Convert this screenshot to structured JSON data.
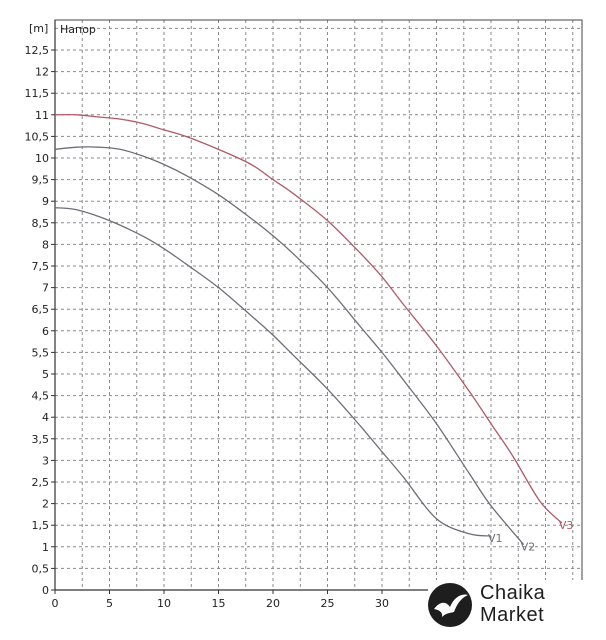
{
  "chart_data": {
    "type": "line",
    "title": "",
    "ylabel_unit": "[m]",
    "ylabel": "Напор",
    "xlabel": "",
    "xlim": [
      0,
      47
    ],
    "ylim": [
      0,
      13
    ],
    "xticks": [
      "0",
      "5",
      "10",
      "15",
      "20",
      "25",
      "30"
    ],
    "yticks": [
      "0",
      "0,5",
      "1",
      "1,5",
      "2",
      "2,5",
      "3",
      "3,5",
      "4",
      "4,5",
      "5",
      "5,5",
      "6",
      "6,5",
      "7",
      "7,5",
      "8",
      "8,5",
      "9",
      "9,5",
      "10",
      "10,5",
      "11",
      "11,5",
      "12",
      "12,5"
    ],
    "grid": true,
    "series": [
      {
        "name": "V1",
        "color": "#6e6e78",
        "x": [
          0,
          2,
          5,
          8,
          10,
          12,
          15,
          18,
          20,
          22,
          25,
          28,
          30,
          32,
          35,
          38,
          40
        ],
        "y": [
          8.85,
          8.8,
          8.55,
          8.2,
          7.9,
          7.55,
          7.0,
          6.35,
          5.9,
          5.4,
          4.65,
          3.8,
          3.2,
          2.6,
          1.65,
          1.3,
          1.25
        ]
      },
      {
        "name": "V2",
        "color": "#6e6e78",
        "x": [
          0,
          2,
          4,
          6,
          8,
          10,
          12,
          15,
          18,
          20,
          22,
          25,
          28,
          30,
          32,
          35,
          38,
          40,
          43
        ],
        "y": [
          10.2,
          10.25,
          10.25,
          10.2,
          10.05,
          9.85,
          9.6,
          9.15,
          8.6,
          8.2,
          7.75,
          7.0,
          6.1,
          5.5,
          4.85,
          3.85,
          2.7,
          1.95,
          1.05
        ]
      },
      {
        "name": "V3",
        "color": "#b05a68",
        "x": [
          0,
          2,
          4,
          6,
          8,
          10,
          12,
          15,
          18,
          20,
          22,
          25,
          28,
          30,
          32,
          35,
          38,
          40,
          42,
          44.5,
          46.5
        ],
        "y": [
          11.0,
          11.0,
          10.95,
          10.9,
          10.8,
          10.65,
          10.5,
          10.2,
          9.85,
          9.5,
          9.15,
          8.55,
          7.8,
          7.25,
          6.6,
          5.65,
          4.6,
          3.85,
          3.1,
          2.05,
          1.55
        ]
      }
    ]
  },
  "logo": {
    "line1": "Chaika",
    "line2": "Market"
  }
}
